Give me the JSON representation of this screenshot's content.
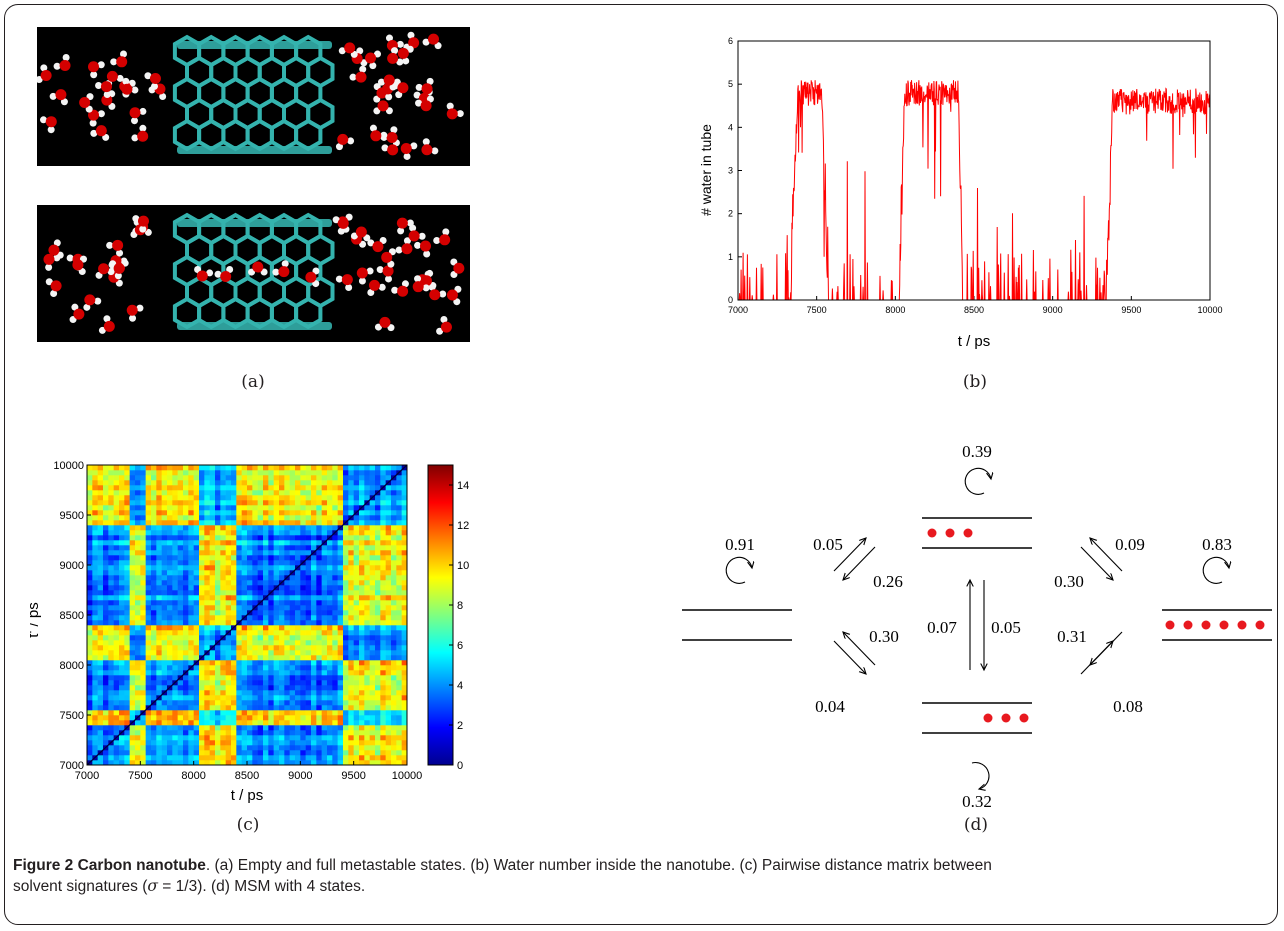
{
  "panels": {
    "a": {
      "label": "(a)",
      "image": "Carbon nanotube with water molecules: empty state (top) and full state (bottom)"
    },
    "b": {
      "label": "(b)",
      "xlabel": "t / ps",
      "ylabel": "# water in tube",
      "x_ticks": [
        "7000",
        "7500",
        "8000",
        "8500",
        "9000",
        "9500",
        "10000"
      ],
      "y_ticks": [
        "0",
        "1",
        "2",
        "3",
        "4",
        "5",
        "6"
      ]
    },
    "c": {
      "label": "(c)",
      "xlabel": "t / ps",
      "ylabel": "t' / ps",
      "x_ticks": [
        "7000",
        "7500",
        "8000",
        "8500",
        "9000",
        "9500",
        "10000"
      ],
      "y_ticks": [
        "7000",
        "7500",
        "8000",
        "8500",
        "9000",
        "9500",
        "10000"
      ],
      "colorbar_ticks": [
        "0",
        "2",
        "4",
        "6",
        "8",
        "10",
        "12",
        "14"
      ]
    },
    "d": {
      "label": "(d)",
      "self_loops": {
        "left": "0.91",
        "top": "0.39",
        "right": "0.83",
        "bottom": "0.32"
      },
      "transitions": {
        "left_to_top": "0.05",
        "top_to_left": "0.26",
        "top_to_right": "0.30",
        "right_to_top": "0.09",
        "bottom_to_top": "0.07",
        "top_to_bottom": "0.05",
        "left_to_bottom": "0.04",
        "bottom_to_left": "0.30",
        "bottom_to_right": "0.31",
        "right_to_bottom": "0.08"
      }
    }
  },
  "caption": {
    "title": "Figure 2 Carbon nanotube",
    "text_line1": ". (a) Empty and full metastable states. (b) Water number inside the nanotube. (c) Pairwise distance matrix between",
    "text_line2_pre": "solvent signatures (",
    "sigma": "σ",
    "text_line2_post": " = 1/3). (d) MSM with 4 states."
  },
  "chart_data": [
    {
      "type": "line",
      "xlabel": "t / ps",
      "ylabel": "# water in tube",
      "xlim": [
        7000,
        10000
      ],
      "ylim": [
        0,
        6
      ],
      "segments": [
        {
          "x_start": 7000,
          "x_end": 7330,
          "level": 0,
          "note": "empty with spikes up to ~1.9"
        },
        {
          "x_start": 7380,
          "x_end": 7530,
          "level": 4.8
        },
        {
          "x_start": 7580,
          "x_end": 8020,
          "level": 0
        },
        {
          "x_start": 8060,
          "x_end": 8400,
          "level": 4.8
        },
        {
          "x_start": 8430,
          "x_end": 9340,
          "level": 0,
          "note": "spikes up to ~3.3"
        },
        {
          "x_start": 9380,
          "x_end": 10000,
          "level": 4.6
        }
      ]
    },
    {
      "type": "heatmap",
      "xlabel": "t / ps",
      "ylabel": "t' / ps",
      "xlim": [
        7000,
        10000
      ],
      "ylim": [
        7000,
        10000
      ],
      "colorbar_range": [
        0,
        15
      ],
      "full_intervals": [
        [
          7380,
          7530
        ],
        [
          8060,
          8400
        ],
        [
          9380,
          10000
        ]
      ]
    }
  ]
}
